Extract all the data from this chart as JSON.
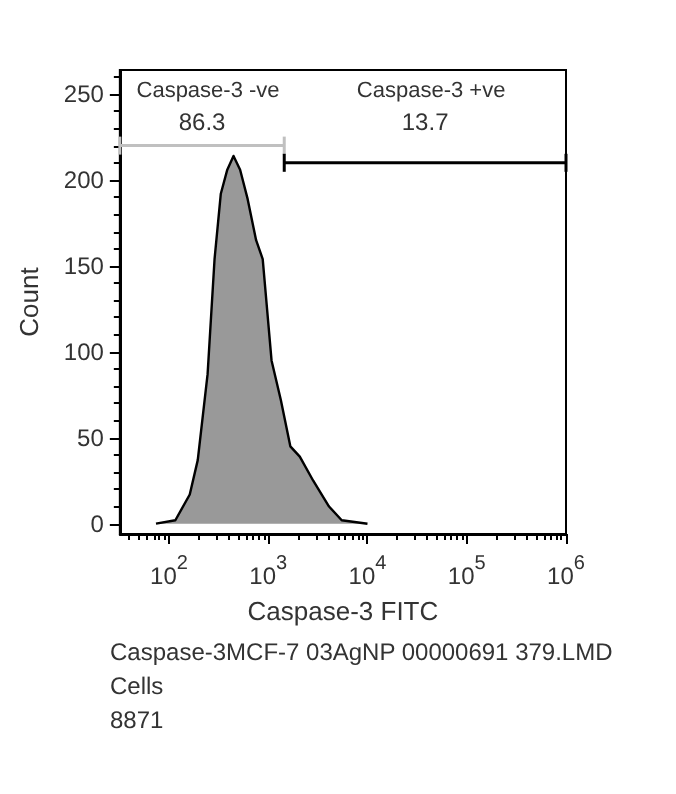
{
  "chart_data": {
    "type": "area",
    "xlabel": "Caspase-3 FITC",
    "ylabel": "Count",
    "x": [
      74,
      116,
      162,
      195,
      245,
      288,
      333,
      387,
      447,
      521,
      620,
      755,
      880,
      1080,
      1340,
      1670,
      2080,
      2840,
      4100,
      5500,
      10000
    ],
    "series": [
      {
        "color": "#999999",
        "values": [
          0,
          2,
          17,
          37,
          87,
          154,
          192,
          206,
          214,
          206,
          189,
          165,
          154,
          95,
          72,
          45,
          39,
          25,
          10,
          2,
          0
        ]
      },
      {
        "type": "line",
        "color": "#c0c0c0",
        "x": [
          32,
          1450
        ],
        "values": [
          220,
          220
        ]
      },
      {
        "type": "line",
        "color": "#000000",
        "x": [
          1450,
          1000000
        ],
        "values": [
          210,
          210
        ]
      }
    ],
    "log": "x",
    "xlim": [
      32,
      1000000
    ],
    "ylim": [
      -6,
      264
    ],
    "xticks": [
      {
        "value": 100,
        "label": "10$^{2}$"
      },
      {
        "value": 1000,
        "label": "10$^{3}$"
      },
      {
        "value": 10000,
        "label": "10$^{4}$"
      },
      {
        "value": 100000,
        "label": "10$^{5}$"
      },
      {
        "value": 1000000,
        "label": "10$^{6}$"
      }
    ],
    "yticks": [
      0,
      50,
      100,
      150,
      200,
      250
    ],
    "annotations": [
      "Caspase-3 -ve",
      "86.3",
      "Caspase-3 +ve",
      "13.7",
      "Caspase-3MCF-7 03AgNP 00000691 379.LMD",
      "Cells",
      "8871"
    ]
  }
}
